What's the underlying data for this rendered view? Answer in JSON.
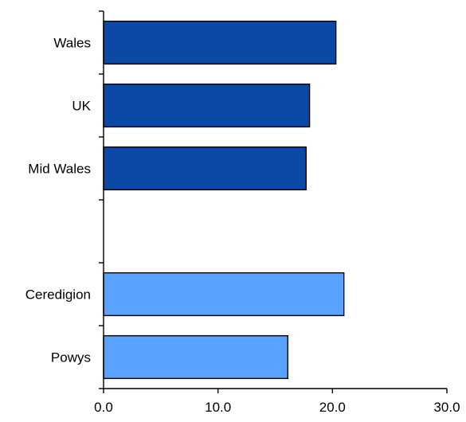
{
  "chart_data": {
    "type": "bar",
    "orientation": "horizontal",
    "categories": [
      "Wales",
      "UK",
      "Mid Wales",
      "",
      "Ceredigion",
      "Powys"
    ],
    "values": [
      20.3,
      18.0,
      17.7,
      null,
      21.0,
      16.1
    ],
    "bar_colors": [
      "#0a4aa6",
      "#0a4aa6",
      "#0a4aa6",
      null,
      "#59a2ff",
      "#59a2ff"
    ],
    "xlim": [
      0,
      30
    ],
    "xticks": [
      0,
      10,
      20,
      30
    ],
    "xtick_labels": [
      "0.0",
      "10.0",
      "20.0",
      "30.0"
    ],
    "grid": false,
    "legend": "none"
  }
}
